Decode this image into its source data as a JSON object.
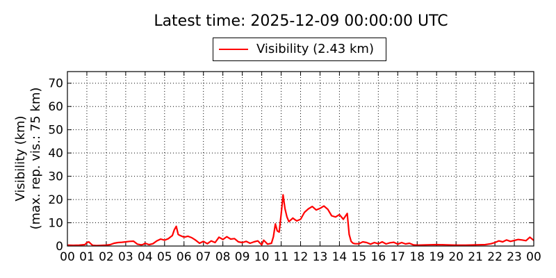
{
  "chart_data": {
    "type": "line",
    "title": "Latest time: 2025-12-09 00:00:00 UTC",
    "ylabel_lines": [
      "Visibility (km)",
      "(max. rep. vis.: 75 km)"
    ],
    "xlabel": "",
    "xlim": [
      0,
      24
    ],
    "ylim": [
      0,
      75
    ],
    "grid": true,
    "legend_position": "top-center",
    "x_tick_labels": [
      "00",
      "01",
      "02",
      "03",
      "04",
      "05",
      "06",
      "07",
      "08",
      "09",
      "10",
      "11",
      "12",
      "13",
      "14",
      "15",
      "16",
      "17",
      "18",
      "19",
      "20",
      "21",
      "22",
      "23",
      "00"
    ],
    "y_tick_labels": [
      "0",
      "10",
      "20",
      "30",
      "40",
      "50",
      "60",
      "70"
    ],
    "series": [
      {
        "name": "Visibility (2.43 km)",
        "color": "#ff0000",
        "x": [
          0,
          0.3,
          0.6,
          0.9,
          1.0,
          1.1,
          1.2,
          1.3,
          1.5,
          1.8,
          2.0,
          2.2,
          2.4,
          2.6,
          2.8,
          3.0,
          3.2,
          3.4,
          3.6,
          3.8,
          3.9,
          4.0,
          4.2,
          4.4,
          4.6,
          4.8,
          5.0,
          5.2,
          5.4,
          5.5,
          5.6,
          5.7,
          5.8,
          6.0,
          6.2,
          6.4,
          6.6,
          6.8,
          7.0,
          7.2,
          7.4,
          7.6,
          7.8,
          8.0,
          8.2,
          8.4,
          8.6,
          8.8,
          9.0,
          9.2,
          9.4,
          9.6,
          9.8,
          10.0,
          10.1,
          10.3,
          10.5,
          10.6,
          10.7,
          10.8,
          10.9,
          11.0,
          11.1,
          11.2,
          11.3,
          11.4,
          11.6,
          11.8,
          12.0,
          12.2,
          12.4,
          12.6,
          12.8,
          13.0,
          13.2,
          13.4,
          13.6,
          13.8,
          14.0,
          14.2,
          14.4,
          14.5,
          14.6,
          14.7,
          14.8,
          15.0,
          15.2,
          15.4,
          15.6,
          15.8,
          16.0,
          16.2,
          16.4,
          16.6,
          16.8,
          17.0,
          17.2,
          17.4,
          17.6,
          17.8,
          18.0,
          18.5,
          19.0,
          19.5,
          20.0,
          20.5,
          21.0,
          21.5,
          21.8,
          22.0,
          22.2,
          22.4,
          22.6,
          22.8,
          23.0,
          23.2,
          23.4,
          23.6,
          23.8,
          24.0
        ],
        "y": [
          0.4,
          0.3,
          0.4,
          0.6,
          1.5,
          1.8,
          1.0,
          0.3,
          0.2,
          0.3,
          0.4,
          0.6,
          1.2,
          1.5,
          1.6,
          1.8,
          2.0,
          2.1,
          0.8,
          0.5,
          0.7,
          1.2,
          0.6,
          1.0,
          2.2,
          3.0,
          2.5,
          3.2,
          4.5,
          7.0,
          8.5,
          5.0,
          4.5,
          3.8,
          4.2,
          3.6,
          2.5,
          1.2,
          2.0,
          1.0,
          2.2,
          1.5,
          3.8,
          2.8,
          4.0,
          3.0,
          3.2,
          1.8,
          1.5,
          2.0,
          1.2,
          1.8,
          2.2,
          0.5,
          2.5,
          0.8,
          1.2,
          4.0,
          9.5,
          6.5,
          6.0,
          13.5,
          22.0,
          16.0,
          12.5,
          10.5,
          12.0,
          10.8,
          11.5,
          14.5,
          16.0,
          17.0,
          15.5,
          16.2,
          17.2,
          15.8,
          13.0,
          12.5,
          13.5,
          11.5,
          14.0,
          5.0,
          2.0,
          1.2,
          1.0,
          1.0,
          1.8,
          1.5,
          0.8,
          1.5,
          1.0,
          1.8,
          0.9,
          1.4,
          1.6,
          0.8,
          1.5,
          0.9,
          1.2,
          0.5,
          0.4,
          0.5,
          0.6,
          0.5,
          0.4,
          0.4,
          0.5,
          0.6,
          1.0,
          1.5,
          2.2,
          1.8,
          2.6,
          2.0,
          2.4,
          2.8,
          2.6,
          2.3,
          3.8,
          2.43
        ]
      }
    ]
  }
}
